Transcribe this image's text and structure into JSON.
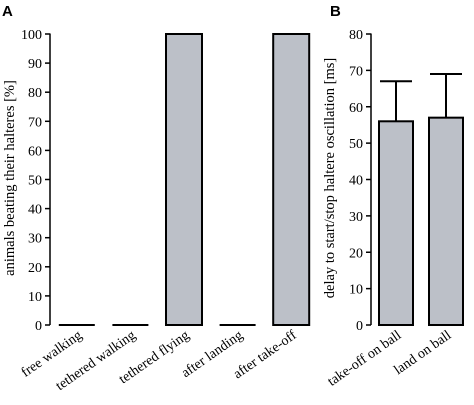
{
  "chart_data": [
    {
      "panel": "A",
      "type": "bar",
      "ylabel": "animals beating their halteres [%]",
      "xlabel": "",
      "ylim": [
        0,
        100
      ],
      "yticks": [
        0,
        10,
        20,
        30,
        40,
        50,
        60,
        70,
        80,
        90,
        100
      ],
      "categories": [
        "free walking",
        "tethered walking",
        "tethered flying",
        "after landing",
        "after take-off"
      ],
      "values": [
        0,
        0,
        100,
        0,
        100
      ],
      "bar_color": "#bcc0c8",
      "grid": false
    },
    {
      "panel": "B",
      "type": "bar",
      "ylabel": "delay to start/stop haltere oscillation [ms]",
      "xlabel": "",
      "ylim": [
        0,
        80
      ],
      "yticks": [
        0,
        10,
        20,
        30,
        40,
        50,
        60,
        70,
        80
      ],
      "categories": [
        "take-off on ball",
        "land on ball"
      ],
      "values": [
        56,
        57
      ],
      "error_upper": [
        67,
        69
      ],
      "bar_color": "#bcc0c8",
      "grid": false
    }
  ]
}
